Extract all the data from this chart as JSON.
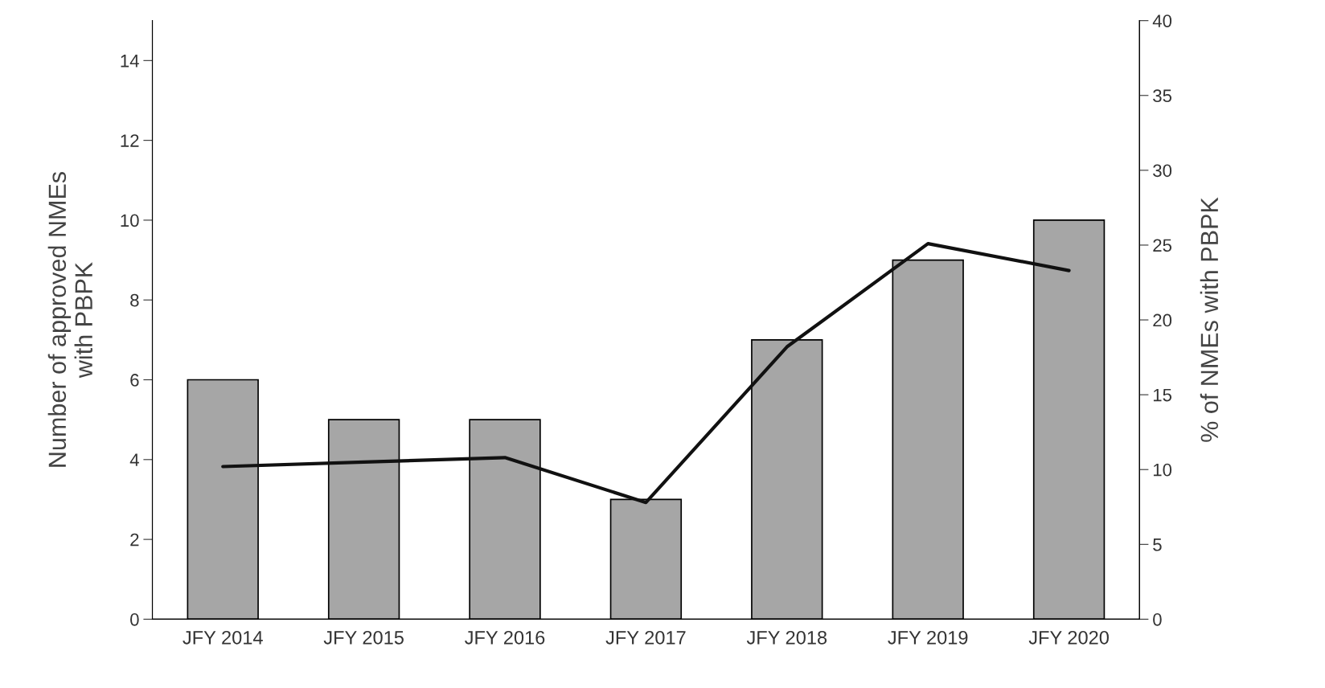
{
  "chart_data": {
    "type": "bar",
    "ylabel": "Number of approved NMEs\nwith PBPK",
    "y2label": "% of NMEs with PBPK",
    "categories": [
      "JFY 2014",
      "JFY 2015",
      "JFY 2016",
      "JFY 2017",
      "JFY 2018",
      "JFY 2019",
      "JFY 2020"
    ],
    "series": [
      {
        "color": "#a6a6a6",
        "values": [
          6,
          5,
          5,
          3,
          7,
          9,
          10
        ]
      },
      {
        "type": "line",
        "axis": "y2",
        "color": "#111111",
        "values": [
          10.2,
          10.5,
          10.8,
          7.8,
          18.2,
          25.1,
          23.3
        ]
      }
    ],
    "ylim": [
      0,
      15
    ],
    "yticks": [
      0,
      2,
      4,
      6,
      8,
      10,
      12,
      14
    ],
    "y2lim": [
      0,
      40
    ],
    "y2ticks": [
      0,
      5,
      10,
      15,
      20,
      25,
      30,
      35,
      40
    ],
    "grid": false,
    "legend": false,
    "marker": "none",
    "line_style": "solid"
  }
}
